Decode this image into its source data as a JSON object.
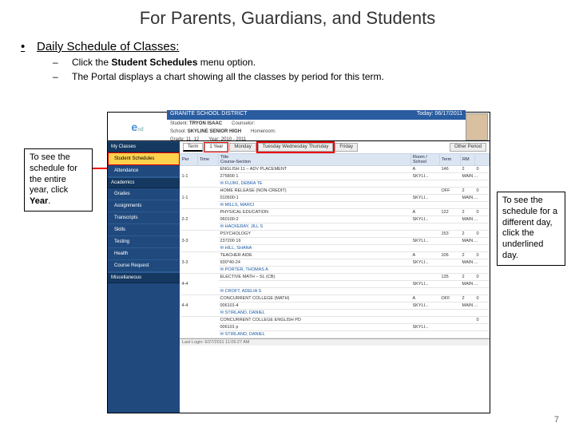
{
  "slide": {
    "title": "For Parents, Guardians, and Students",
    "bullet": "Daily Schedule of Classes:",
    "sub1_pre": "Click the ",
    "sub1_bold": "Student Schedules",
    "sub1_post": " menu option.",
    "sub2": "The Portal displays a chart showing all the classes by period for this term.",
    "page_number": "7"
  },
  "callouts": {
    "left_pre": "To see the schedule for the entire year, click ",
    "left_bold": "Year",
    "left_post": ".",
    "right": "To see the schedule for a different day, click the underlined day."
  },
  "portal": {
    "district": "GRANITE SCHOOL DISTRICT",
    "today": "Today: 06/17/2011",
    "logo_line1": "e",
    "logo_line2": "sd",
    "student_lbl": "Student:",
    "student_val": "TRYON ISAAC",
    "counselor_lbl": "Counselor:",
    "school_lbl": "School:",
    "school_val": "SKYLINE SENIOR HIGH",
    "homeroom_lbl": "Homeroom:",
    "grade_lbl": "Grade:",
    "grade_val": "11, 12",
    "year_lbl": "Year:",
    "year_val": "2010 - 2011",
    "sidebar": {
      "group1": "My Classes",
      "item_schedules": "Student Schedules",
      "item_attendance": "Attendance",
      "group2": "Academics",
      "item_grades": "Grades",
      "item_assignments": "Assignments",
      "item_transcripts": "Transcripts",
      "item_skills": "Skills",
      "item_testing": "Testing",
      "item_health": "Health",
      "item_course": "Course Request",
      "group3": "Miscellaneous"
    },
    "termtabs": {
      "term": "Term",
      "year_tab": "1 Year",
      "monday": "Monday",
      "midweek": "Tuesday    Wednesday    Thursday",
      "friday": "Friday",
      "other": "Other Period"
    },
    "columns": {
      "per": "Per",
      "time": "Time",
      "title": "Title",
      "course": "Course-Section",
      "room": "Room / School",
      "term": "Term",
      "rm": "RM"
    },
    "rows": [
      {
        "per": "1-1",
        "title": "ENGLISH 11 – ADV PLACEMENT",
        "sec": "275800 1",
        "teacher": "FUJIKI, DEBRA TE",
        "room": "A",
        "rm": "146",
        "t": "2",
        "s": "SKYLI...",
        "loc": "MAIN ..."
      },
      {
        "per": "1-1",
        "title": "HOME RELEASE (NON-CREDIT)",
        "sec": "010500-1",
        "teacher": "MILLS, MARCI",
        "room": "",
        "rm": "OFF",
        "t": "2",
        "s": "SKYLI...",
        "loc": "MAIN ..."
      },
      {
        "per": "2-2",
        "title": "PHYSICAL EDUCATION",
        "sec": "060100-2",
        "teacher": "HACKERAY, JILL S",
        "room": "A",
        "rm": "122",
        "t": "2",
        "s": "SKYLI...",
        "loc": "MAIN ..."
      },
      {
        "per": "3-3",
        "title": "PSYCHOLOGY",
        "sec": "237200 16",
        "teacher": "HILL, SHANA",
        "room": "",
        "rm": "153",
        "t": "2",
        "s": "SKYLI...",
        "loc": "MAIN ..."
      },
      {
        "per": "3-3",
        "title": "TEACHER AIDE",
        "sec": "930*40-24",
        "teacher": "PORTER, THOMAS A",
        "room": "A",
        "rm": "106",
        "t": "2",
        "s": "SKYLI...",
        "loc": "MAIN ..."
      },
      {
        "per": "4-4",
        "title": "ELECTIVE MATH – SL (CB)",
        "sec": "",
        "teacher": "CROFT, ADELIA S",
        "room": "",
        "rm": "135",
        "t": "2",
        "s": "SKYLI...",
        "loc": "MAIN ..."
      },
      {
        "per": "4-4",
        "title": "CONCURRENT COLLEGE (MATH)",
        "sec": "006101-4",
        "teacher": "STIRLAND, DANIEL",
        "room": "A",
        "rm": "OFF",
        "t": "2",
        "s": "SKYLI...",
        "loc": "MAIN ..."
      },
      {
        "per": "",
        "title": "CONCURRENT COLLEGE ENGLISH PD",
        "sec": "006101 p",
        "teacher": "STIRLAND, DANIEL",
        "room": "",
        "rm": "",
        "t": "",
        "s": "SKYLI...",
        "loc": ""
      }
    ],
    "footer": "Last Login: 6/27/2011 11:05:27 AM"
  },
  "colors": {
    "accent_red": "#e00000",
    "district_bar": "#2a5ca0",
    "sidebar_bg": "#204a7e",
    "active_bg": "#ffd24d"
  }
}
